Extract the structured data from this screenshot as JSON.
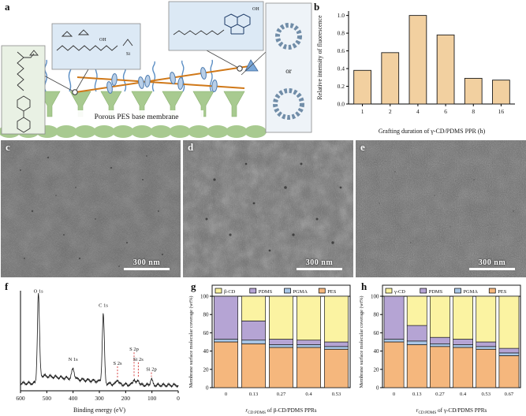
{
  "panels": {
    "a": {
      "label": "a",
      "membrane_label": "Porous PES base membrane",
      "or_label": "or",
      "hydroxyl_label": "OH",
      "silicon_label": "Si"
    },
    "b": {
      "label": "b"
    },
    "c": {
      "label": "c",
      "scale_label": "300 nm"
    },
    "d": {
      "label": "d",
      "scale_label": "300 nm"
    },
    "e": {
      "label": "e",
      "scale_label": "300 nm"
    },
    "f": {
      "label": "f"
    },
    "g": {
      "label": "g"
    },
    "h": {
      "label": "h"
    }
  },
  "chart_data": [
    {
      "id": "b",
      "type": "bar",
      "categories": [
        "1",
        "2",
        "4",
        "6",
        "8",
        "16"
      ],
      "values": [
        0.38,
        0.58,
        1.0,
        0.78,
        0.29,
        0.27
      ],
      "bar_color": "#f2d0a0",
      "xlabel": "Grafting duration of γ-CD/PDMS PPR (h)",
      "ylabel": "Relative intensity of fluorescence",
      "ylim": [
        0,
        1.05
      ],
      "yticks": [
        0,
        0.2,
        0.4,
        0.6,
        0.8,
        1.0
      ],
      "grid": false
    },
    {
      "id": "f",
      "type": "line",
      "xlabel": "Binding energy (eV)",
      "xlim": [
        600,
        0
      ],
      "xticks": [
        600,
        500,
        400,
        300,
        200,
        100,
        0
      ],
      "line_color": "#151515",
      "marker_color": "#d02020",
      "peaks": [
        {
          "label": "O 1s",
          "x": 532,
          "h": 0.82,
          "w": 4,
          "label_h": 0.98,
          "red": false
        },
        {
          "label": "N 1s",
          "x": 400,
          "h": 0.1,
          "w": 5,
          "label_h": 0.3,
          "red": false
        },
        {
          "label": "C 1s",
          "x": 285,
          "h": 0.68,
          "w": 4,
          "label_h": 0.84,
          "red": false
        },
        {
          "label": "S 2s",
          "x": 231,
          "h": 0.05,
          "w": 4,
          "label_h": 0.26,
          "red": true
        },
        {
          "label": "S 2p",
          "x": 168,
          "h": 0.06,
          "w": 4,
          "label_h": 0.4,
          "red": true
        },
        {
          "label": "Si 2s",
          "x": 152,
          "h": 0.05,
          "w": 4,
          "label_h": 0.3,
          "red": true
        },
        {
          "label": "Si 2p",
          "x": 102,
          "h": 0.06,
          "w": 4,
          "label_h": 0.2,
          "red": true
        }
      ]
    },
    {
      "id": "g",
      "type": "bar",
      "subtype": "stacked",
      "categories": [
        "0",
        "0.13",
        "0.27",
        "0.4",
        "0.53"
      ],
      "series": [
        {
          "name": "β-CD",
          "color": "#fbf3a2",
          "values": [
            0,
            27,
            47,
            48,
            50
          ]
        },
        {
          "name": "PDMS",
          "color": "#b5a4d4",
          "values": [
            47,
            21,
            6,
            5,
            5
          ]
        },
        {
          "name": "PGMA",
          "color": "#a8c6e6",
          "values": [
            3,
            4,
            3,
            3,
            3
          ]
        },
        {
          "name": "PES",
          "color": "#f5b77d",
          "values": [
            50,
            48,
            44,
            44,
            42
          ]
        }
      ],
      "xlabel": {
        "prefix": "r",
        "sub": "CD:PDMS",
        "rest": " of β-CD/PDMS PPRs"
      },
      "ylabel": "Membrane surface molecular coverage (wt%)",
      "ylim": [
        0,
        100
      ],
      "yticks": [
        0,
        20,
        40,
        60,
        80,
        100
      ],
      "legend_position": "top"
    },
    {
      "id": "h",
      "type": "bar",
      "subtype": "stacked",
      "categories": [
        "0",
        "0.13",
        "0.27",
        "0.4",
        "0.53",
        "0.67"
      ],
      "series": [
        {
          "name": "γ-CD",
          "color": "#fbf3a2",
          "values": [
            0,
            32,
            45,
            47,
            50,
            57
          ]
        },
        {
          "name": "PDMS",
          "color": "#b5a4d4",
          "values": [
            47,
            17,
            7,
            6,
            5,
            5
          ]
        },
        {
          "name": "PGMA",
          "color": "#a8c6e6",
          "values": [
            3,
            4,
            3,
            3,
            3,
            3
          ]
        },
        {
          "name": "PES",
          "color": "#f5b77d",
          "values": [
            50,
            47,
            45,
            44,
            42,
            35
          ]
        }
      ],
      "xlabel": {
        "prefix": "r",
        "sub": "CD:PDMS",
        "rest": " of γ-CD/PDMS PPRs"
      },
      "ylabel": "Membrane surface molecular coverage (wt%)",
      "ylim": [
        0,
        100
      ],
      "yticks": [
        0,
        20,
        40,
        60,
        80,
        100
      ],
      "legend_position": "top"
    }
  ]
}
